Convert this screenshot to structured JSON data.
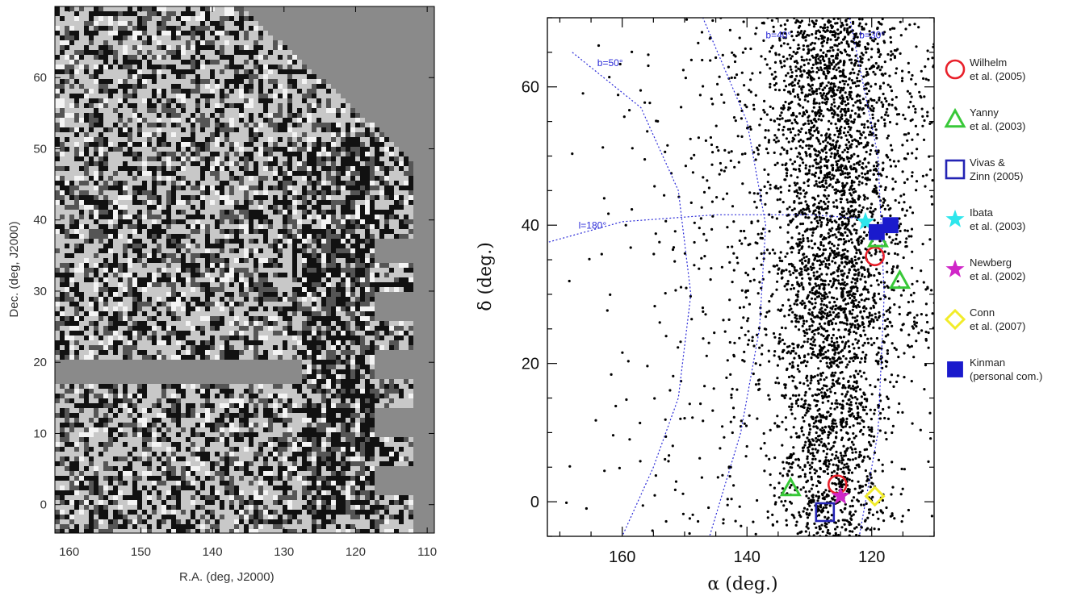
{
  "colors": {
    "panel_bg": "#8a8a8a",
    "stars": "#000000",
    "galactic_lines": "#2b2bd8",
    "wilhelm": "#e8202a",
    "yanny": "#38c838",
    "vivas": "#2323b4",
    "ibata": "#2ee6ec",
    "newberg": "#d026c8",
    "conn": "#f2ec2a",
    "kinman": "#1a1acc"
  },
  "chart_data": [
    {
      "type": "heatmap",
      "xlabel": "R.A. (deg, J2000)",
      "ylabel": "Dec. (deg, J2000)",
      "xlim": [
        162,
        109
      ],
      "ylim": [
        -4,
        70
      ],
      "x_ticks": [
        "160",
        "150",
        "140",
        "130",
        "120",
        "110"
      ],
      "x_tick_values": [
        160,
        150,
        140,
        130,
        120,
        110
      ],
      "y_ticks": [
        "0",
        "10",
        "20",
        "30",
        "40",
        "50",
        "60"
      ],
      "y_tick_values": [
        0,
        10,
        20,
        30,
        40,
        50,
        60
      ],
      "features": [
        {
          "kind": "dark stream",
          "ra_range": [
            118,
            128
          ],
          "dec_range": [
            -1,
            51
          ]
        },
        {
          "kind": "thin dark stream",
          "from": [
            163,
            46
          ],
          "to": [
            128,
            28
          ]
        }
      ]
    },
    {
      "type": "scatter",
      "xlabel": "α (deg.)",
      "ylabel": "δ (deg.)",
      "xlim": [
        172,
        110
      ],
      "ylim": [
        -5,
        70
      ],
      "x_ticks": [
        "160",
        "140",
        "120"
      ],
      "x_tick_values": [
        160,
        140,
        120
      ],
      "y_ticks": [
        "0",
        "20",
        "40",
        "60"
      ],
      "y_tick_values": [
        0,
        20,
        40,
        60
      ],
      "annotations": [
        {
          "text": "b=50°",
          "x": 164,
          "y": 63
        },
        {
          "text": "l=180°",
          "x": 167,
          "y": 39.5
        },
        {
          "text": "b=40°",
          "x": 137,
          "y": 67
        },
        {
          "text": "b=30°",
          "x": 122,
          "y": 67
        }
      ],
      "star_density": [
        {
          "dec_range": [
            -5,
            70
          ],
          "center_ra": 126,
          "width": 4.5,
          "count": 2600
        },
        {
          "dec_range": [
            20,
            70
          ],
          "center_ra": 124,
          "width": 9,
          "count": 1000
        },
        {
          "dec_range": [
            -5,
            70
          ],
          "center_ra": 135,
          "width": 14,
          "count": 700
        }
      ],
      "detections": [
        {
          "name": "Wilhelm et al. (2005)",
          "legend": [
            "Wilhelm",
            "et al. (2005)"
          ],
          "marker": "circle",
          "color_key": "wilhelm",
          "points": [
            [
              119.5,
              35.5
            ],
            [
              125.5,
              2.5
            ]
          ]
        },
        {
          "name": "Yanny et al. (2003)",
          "legend": [
            "Yanny",
            "et al. (2003)"
          ],
          "marker": "triangle",
          "color_key": "yanny",
          "points": [
            [
              119,
              38
            ],
            [
              115.5,
              32
            ],
            [
              133,
              2
            ]
          ]
        },
        {
          "name": "Vivas & Zinn (2005)",
          "legend": [
            "Vivas &",
            "Zinn (2005)"
          ],
          "marker": "square",
          "color_key": "vivas",
          "points": [
            [
              127.5,
              -1.5
            ]
          ]
        },
        {
          "name": "Ibata et al. (2003)",
          "legend": [
            "Ibata",
            "et al. (2003)"
          ],
          "marker": "star",
          "color_key": "ibata",
          "points": [
            [
              121,
              40.5
            ]
          ]
        },
        {
          "name": "Newberg et al. (2002)",
          "legend": [
            "Newberg",
            "et al. (2002)"
          ],
          "marker": "star",
          "color_key": "newberg",
          "points": [
            [
              125,
              0.8
            ]
          ]
        },
        {
          "name": "Conn et al. (2007)",
          "legend": [
            "Conn",
            "et al. (2007)"
          ],
          "marker": "diamond",
          "color_key": "conn",
          "points": [
            [
              119.5,
              0.8
            ]
          ]
        },
        {
          "name": "Kinman (personal com.)",
          "legend": [
            "Kinman",
            "(personal com.)"
          ],
          "marker": "filled-square",
          "color_key": "kinman",
          "points": [
            [
              117,
              40
            ],
            [
              119.2,
              39
            ]
          ]
        }
      ]
    }
  ]
}
